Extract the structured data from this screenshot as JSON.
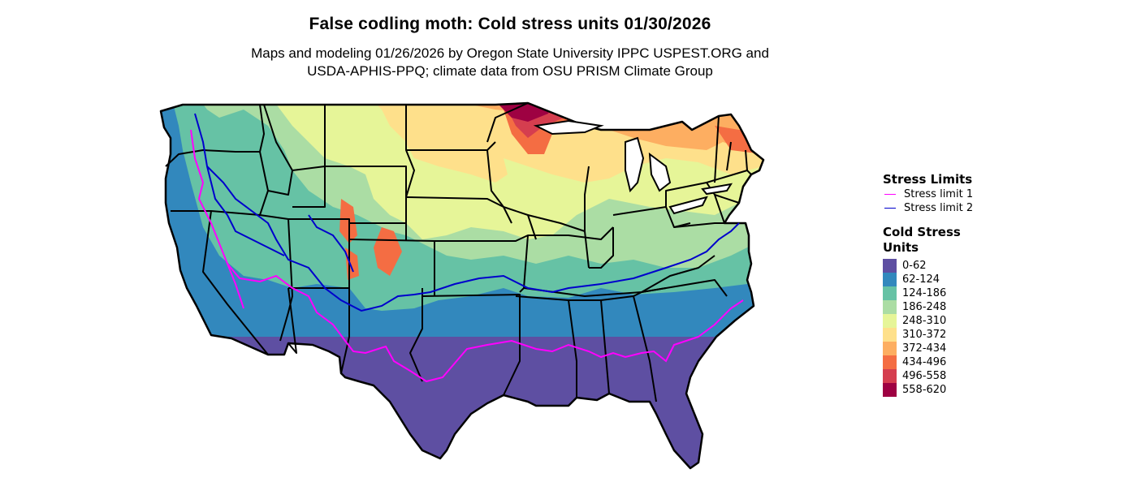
{
  "title": "False codling moth: Cold stress units 01/30/2026",
  "subtitle_lines": [
    "Maps and modeling 01/26/2026 by Oregon State University IPPC USPEST.ORG and",
    "USDA-APHIS-PPQ; climate data from OSU PRISM Climate Group"
  ],
  "legend": {
    "stress_title": "Stress Limits",
    "stress_items": [
      {
        "label": "Stress limit 1",
        "color": "#ff00ff"
      },
      {
        "label": "Stress limit 2",
        "color": "#0000cc"
      }
    ],
    "cold_title": "Cold Stress Units",
    "cold_items": [
      {
        "label": "0-62",
        "color": "#5e4fa2"
      },
      {
        "label": "62-124",
        "color": "#3288bd"
      },
      {
        "label": "124-186",
        "color": "#66c2a5"
      },
      {
        "label": "186-248",
        "color": "#abdda4"
      },
      {
        "label": "248-310",
        "color": "#e6f598"
      },
      {
        "label": "310-372",
        "color": "#fee08b"
      },
      {
        "label": "372-434",
        "color": "#fdae61"
      },
      {
        "label": "434-496",
        "color": "#f46d43"
      },
      {
        "label": "496-558",
        "color": "#d53e4f"
      },
      {
        "label": "558-620",
        "color": "#9e0142"
      }
    ]
  }
}
